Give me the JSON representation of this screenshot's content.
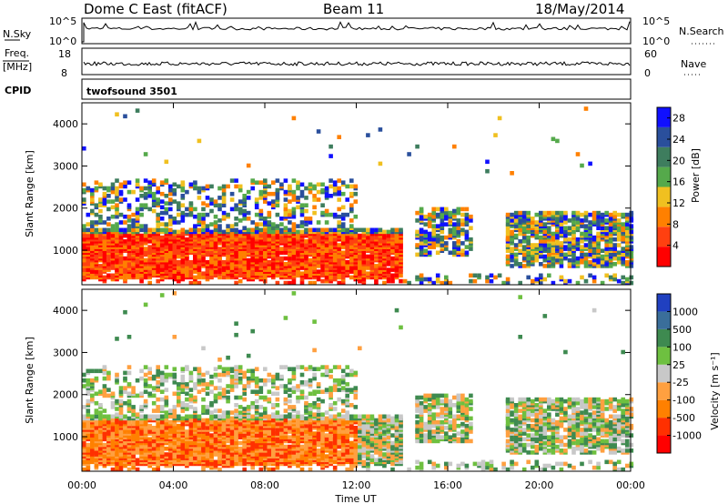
{
  "header": {
    "station": "Dome C East (fitACF)",
    "beam": "Beam 11",
    "date": "18/May/2014"
  },
  "top_panels": {
    "nsky_label": "N.Sky",
    "nsky_ticks": [
      "10^5",
      "10^0"
    ],
    "nsearch_label": "N.Search",
    "nsearch_ticks": [
      "10^5",
      "10^0"
    ],
    "freq_label": "Freq.",
    "freq_unit": "[MHz]",
    "freq_ticks": [
      "18",
      "8"
    ],
    "nave_label": "Nave",
    "nave_ticks": [
      "60",
      "0"
    ],
    "cpid_label": "CPID",
    "cpid_value": "twofsound 3501"
  },
  "chart_data": [
    {
      "type": "heatmap",
      "name": "power",
      "ylabel": "Slant Range [km]",
      "ylim": [
        180,
        4500
      ],
      "yticks": [
        "1000",
        "2000",
        "3000",
        "4000"
      ],
      "ytick_values": [
        1000,
        2000,
        3000,
        4000
      ],
      "xlim": [
        0,
        24
      ],
      "colorbar": {
        "label": "Power [dB]",
        "range": [
          0,
          30
        ],
        "tick_labels": [
          "4",
          "8",
          "12",
          "16",
          "20",
          "24",
          "28"
        ],
        "tick_values": [
          4,
          8,
          12,
          16,
          20,
          24,
          28
        ],
        "colors": [
          "#1010ff",
          "#2a4f9c",
          "#3e7d5e",
          "#55a94b",
          "#f0c020",
          "#ff8000",
          "#ff4010",
          "#ff0000"
        ]
      }
    },
    {
      "type": "heatmap",
      "name": "velocity",
      "ylabel": "Slant Range [km]",
      "ylim": [
        180,
        4500
      ],
      "yticks": [
        "1000",
        "2000",
        "3000",
        "4000"
      ],
      "ytick_values": [
        1000,
        2000,
        3000,
        4000
      ],
      "xlim": [
        0,
        24
      ],
      "xlabel": "Time UT",
      "xticks": [
        "00:00",
        "04:00",
        "08:00",
        "12:00",
        "16:00",
        "20:00",
        "00:00"
      ],
      "xtick_values": [
        0,
        4,
        8,
        12,
        16,
        20,
        24
      ],
      "colorbar": {
        "label": "Velocity [m s⁻¹]",
        "tick_labels": [
          "1000",
          "500",
          "100",
          "25",
          "-25",
          "-100",
          "-500",
          "-1000"
        ],
        "colors": [
          "#2040c0",
          "#3a6e9a",
          "#3e8a50",
          "#6ec040",
          "#c8c8c8",
          "#ffa040",
          "#ff8000",
          "#ff3000",
          "#ff0000"
        ]
      }
    }
  ]
}
